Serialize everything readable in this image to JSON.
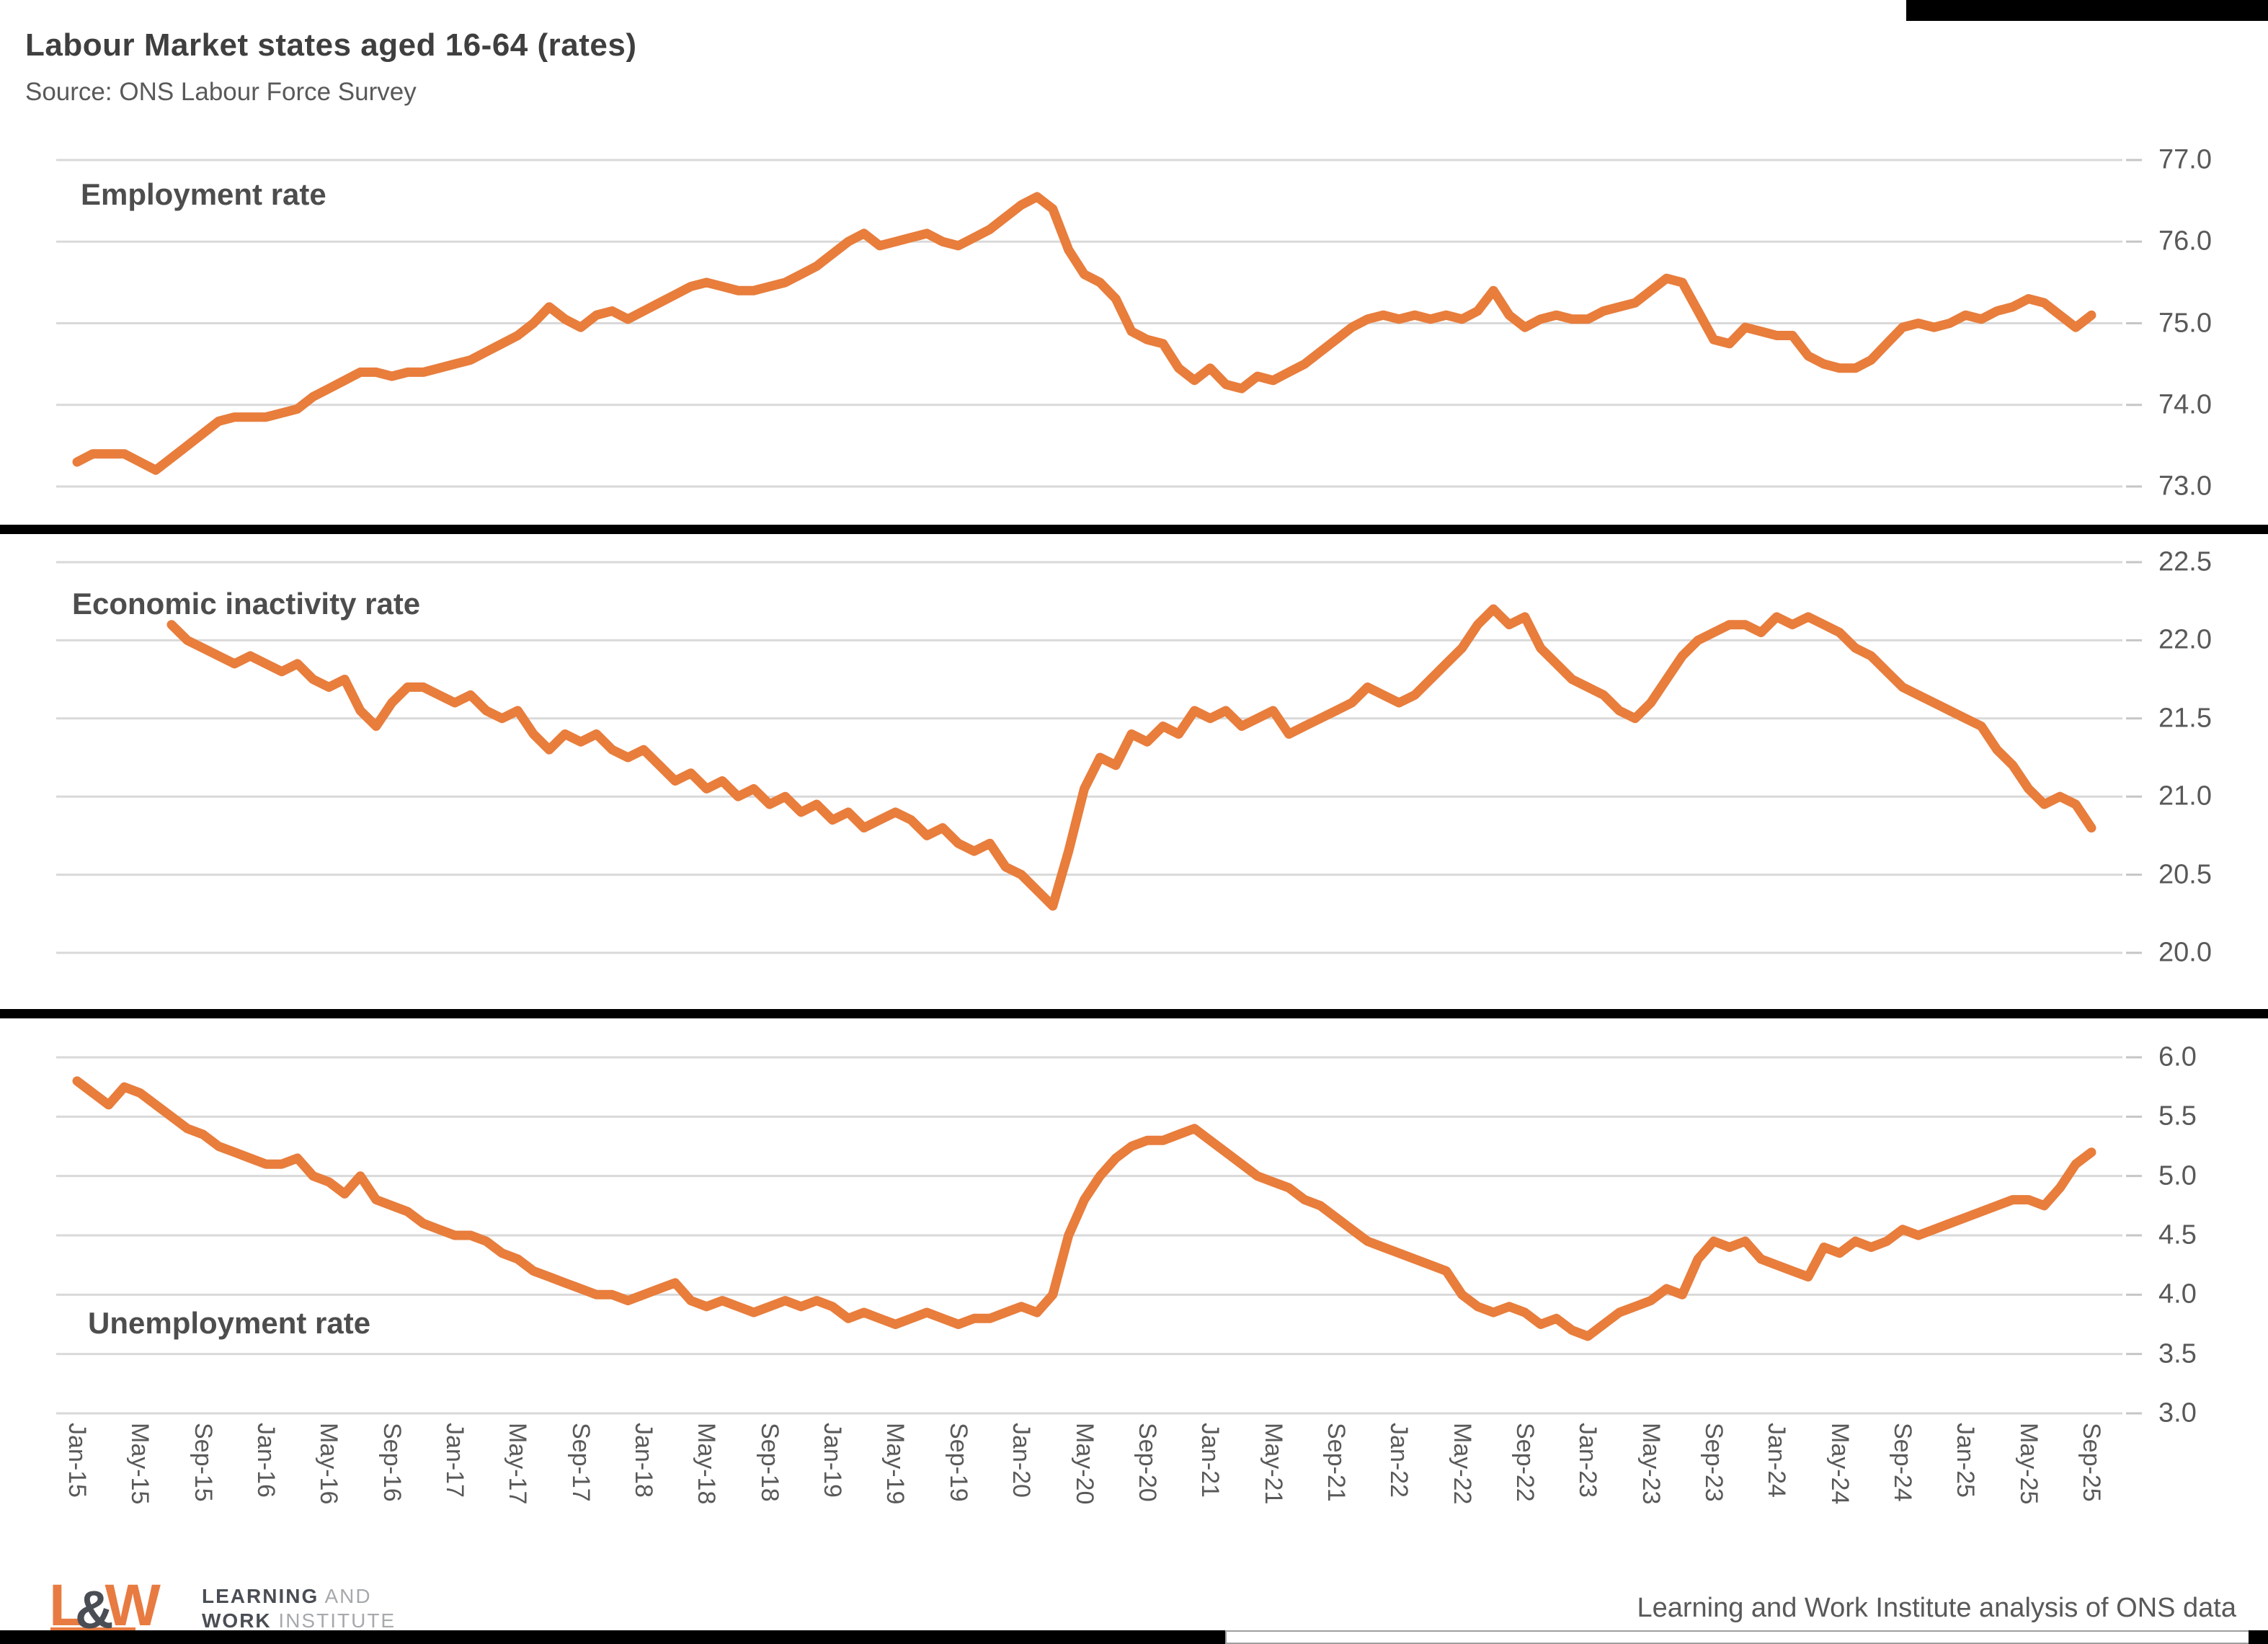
{
  "title": "Labour Market states aged 16-64 (rates)",
  "subtitle": "Source: ONS Labour Force Survey",
  "colors": {
    "line": "#E87D3C",
    "grid": "#D9D9D9",
    "tick_stub": "#C6C6C6",
    "divider": "#000000",
    "title_text": "#3F3F3F",
    "axis_text": "#595959",
    "logo_orange": "#E87B41",
    "logo_dark": "#4A4E54",
    "logo_light": "#A7A9AC"
  },
  "footer": {
    "attribution": "Learning and Work Institute analysis of ONS data",
    "logo": {
      "mark_l": "L",
      "mark_amp": "&",
      "mark_w": "W",
      "line1_bold": "LEARNING",
      "line1_light": " AND",
      "line2_bold": "WORK",
      "line2_light": " INSTITUTE"
    }
  },
  "chart_data": {
    "type": "line",
    "x_axis": {
      "tick_labels": [
        "Jan-15",
        "May-15",
        "Sep-15",
        "Jan-16",
        "May-16",
        "Sep-16",
        "Jan-17",
        "May-17",
        "Sep-17",
        "Jan-18",
        "May-18",
        "Sep-18",
        "Jan-19",
        "May-19",
        "Sep-19",
        "Jan-20",
        "May-20",
        "Sep-20",
        "Jan-21",
        "May-21",
        "Sep-21",
        "Jan-22",
        "May-22",
        "Sep-22",
        "Jan-23",
        "May-23",
        "Sep-23",
        "Jan-24",
        "May-24",
        "Sep-24",
        "Jan-25",
        "May-25",
        "Sep-25"
      ],
      "months_per_tick": 4,
      "n_points": 129
    },
    "panels": [
      {
        "title": "Employment rate",
        "ylim": [
          73.0,
          77.0
        ],
        "ytick_labels": [
          "77.0",
          "76.0",
          "75.0",
          "74.0",
          "73.0"
        ],
        "values": [
          73.3,
          73.4,
          73.4,
          73.4,
          73.3,
          73.2,
          73.35,
          73.5,
          73.65,
          73.8,
          73.85,
          73.85,
          73.85,
          73.9,
          73.95,
          74.1,
          74.2,
          74.3,
          74.4,
          74.4,
          74.35,
          74.4,
          74.4,
          74.45,
          74.5,
          74.55,
          74.65,
          74.75,
          74.85,
          75.0,
          75.2,
          75.05,
          74.95,
          75.1,
          75.15,
          75.05,
          75.15,
          75.25,
          75.35,
          75.45,
          75.5,
          75.45,
          75.4,
          75.4,
          75.45,
          75.5,
          75.6,
          75.7,
          75.85,
          76.0,
          76.1,
          75.95,
          76.0,
          76.05,
          76.1,
          76.0,
          75.95,
          76.05,
          76.15,
          76.3,
          76.45,
          76.55,
          76.4,
          75.9,
          75.6,
          75.5,
          75.3,
          74.9,
          74.8,
          74.75,
          74.45,
          74.3,
          74.45,
          74.25,
          74.2,
          74.35,
          74.3,
          74.4,
          74.5,
          74.65,
          74.8,
          74.95,
          75.05,
          75.1,
          75.05,
          75.1,
          75.05,
          75.1,
          75.05,
          75.15,
          75.4,
          75.1,
          74.95,
          75.05,
          75.1,
          75.05,
          75.05,
          75.15,
          75.2,
          75.25,
          75.4,
          75.55,
          75.5,
          75.15,
          74.8,
          74.75,
          74.95,
          74.9,
          74.85,
          74.85,
          74.6,
          74.5,
          74.45,
          74.45,
          74.55,
          74.75,
          74.95,
          75.0,
          74.95,
          75.0,
          75.1,
          75.05,
          75.15,
          75.2,
          75.3,
          75.25,
          75.1,
          74.95,
          75.1
        ]
      },
      {
        "title": "Economic inactivity rate",
        "ylim": [
          20.0,
          22.5
        ],
        "ytick_labels": [
          "22.5",
          "22.0",
          "21.5",
          "21.0",
          "20.5",
          "20.0"
        ],
        "values": [
          null,
          null,
          null,
          null,
          null,
          null,
          22.1,
          22.0,
          21.95,
          21.9,
          21.85,
          21.9,
          21.85,
          21.8,
          21.85,
          21.75,
          21.7,
          21.75,
          21.55,
          21.45,
          21.6,
          21.7,
          21.7,
          21.65,
          21.6,
          21.65,
          21.55,
          21.5,
          21.55,
          21.4,
          21.3,
          21.4,
          21.35,
          21.4,
          21.3,
          21.25,
          21.3,
          21.2,
          21.1,
          21.15,
          21.05,
          21.1,
          21.0,
          21.05,
          20.95,
          21.0,
          20.9,
          20.95,
          20.85,
          20.9,
          20.8,
          20.85,
          20.9,
          20.85,
          20.75,
          20.8,
          20.7,
          20.65,
          20.7,
          20.55,
          20.5,
          20.4,
          20.3,
          20.65,
          21.05,
          21.25,
          21.2,
          21.4,
          21.35,
          21.45,
          21.4,
          21.55,
          21.5,
          21.55,
          21.45,
          21.5,
          21.55,
          21.4,
          21.45,
          21.5,
          21.55,
          21.6,
          21.7,
          21.65,
          21.6,
          21.65,
          21.75,
          21.85,
          21.95,
          22.1,
          22.2,
          22.1,
          22.15,
          21.95,
          21.85,
          21.75,
          21.7,
          21.65,
          21.55,
          21.5,
          21.6,
          21.75,
          21.9,
          22.0,
          22.05,
          22.1,
          22.1,
          22.05,
          22.15,
          22.1,
          22.15,
          22.1,
          22.05,
          21.95,
          21.9,
          21.8,
          21.7,
          21.65,
          21.6,
          21.55,
          21.5,
          21.45,
          21.3,
          21.2,
          21.05,
          20.95,
          21.0,
          20.95,
          20.8
        ]
      },
      {
        "title": "Unemployment rate",
        "ylim": [
          3.0,
          6.0
        ],
        "ytick_labels": [
          "6.0",
          "5.5",
          "5.0",
          "4.5",
          "4.0",
          "3.5",
          "3.0"
        ],
        "values": [
          5.8,
          5.7,
          5.6,
          5.75,
          5.7,
          5.6,
          5.5,
          5.4,
          5.35,
          5.25,
          5.2,
          5.15,
          5.1,
          5.1,
          5.15,
          5.0,
          4.95,
          4.85,
          5.0,
          4.8,
          4.75,
          4.7,
          4.6,
          4.55,
          4.5,
          4.5,
          4.45,
          4.35,
          4.3,
          4.2,
          4.15,
          4.1,
          4.05,
          4.0,
          4.0,
          3.95,
          4.0,
          4.05,
          4.1,
          3.95,
          3.9,
          3.95,
          3.9,
          3.85,
          3.9,
          3.95,
          3.9,
          3.95,
          3.9,
          3.8,
          3.85,
          3.8,
          3.75,
          3.8,
          3.85,
          3.8,
          3.75,
          3.8,
          3.8,
          3.85,
          3.9,
          3.85,
          4.0,
          4.5,
          4.8,
          5.0,
          5.15,
          5.25,
          5.3,
          5.3,
          5.35,
          5.4,
          5.3,
          5.2,
          5.1,
          5.0,
          4.95,
          4.9,
          4.8,
          4.75,
          4.65,
          4.55,
          4.45,
          4.4,
          4.35,
          4.3,
          4.25,
          4.2,
          4.0,
          3.9,
          3.85,
          3.9,
          3.85,
          3.75,
          3.8,
          3.7,
          3.65,
          3.75,
          3.85,
          3.9,
          3.95,
          4.05,
          4.0,
          4.3,
          4.45,
          4.4,
          4.45,
          4.3,
          4.25,
          4.2,
          4.15,
          4.4,
          4.35,
          4.45,
          4.4,
          4.45,
          4.55,
          4.5,
          4.55,
          4.6,
          4.65,
          4.7,
          4.75,
          4.8,
          4.8,
          4.75,
          4.9,
          5.1,
          5.2
        ]
      }
    ]
  }
}
